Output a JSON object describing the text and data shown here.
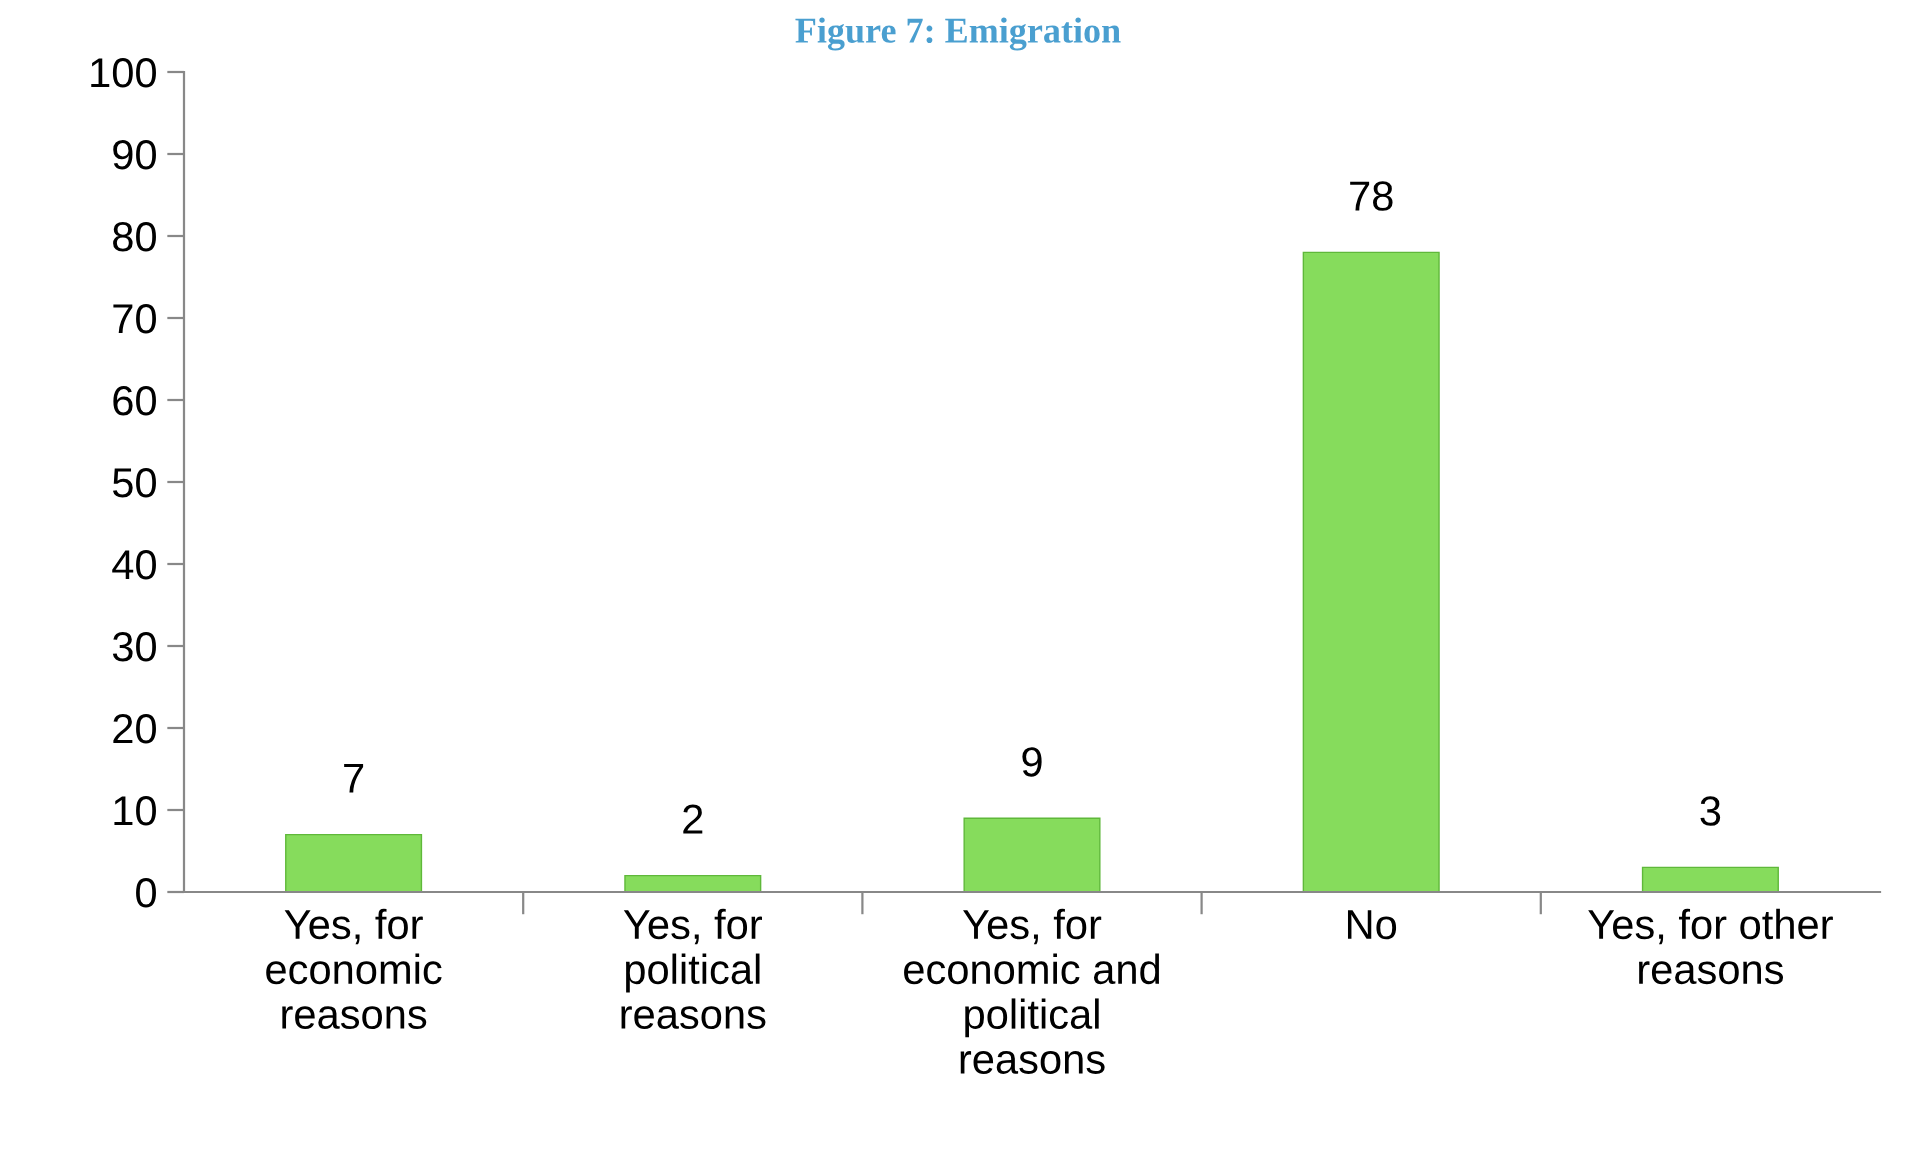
{
  "chart_data": {
    "type": "bar",
    "title": "Figure 7: Emigration",
    "categories": [
      "Yes, for\neconomic\nreasons",
      "Yes, for\npolitical\nreasons",
      "Yes, for\neconomic and\npolitical\nreasons",
      "No",
      "Yes, for other\nreasons"
    ],
    "values": [
      7,
      2,
      9,
      78,
      3
    ],
    "color": "#86dc5c",
    "ylim": [
      0,
      100
    ],
    "yticks": [
      0,
      10,
      20,
      30,
      40,
      50,
      60,
      70,
      80,
      90,
      100
    ],
    "grid": false,
    "data_labels": true
  }
}
